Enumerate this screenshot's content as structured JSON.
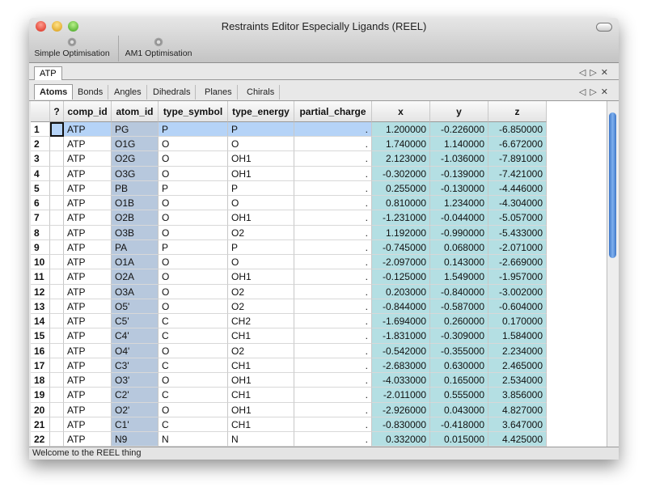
{
  "window": {
    "title": "Restraints Editor Especially Ligands (REEL)"
  },
  "toolbar": [
    "Simple Optimisation",
    "AM1 Optimisation"
  ],
  "document_tab": "ATP",
  "tabs": [
    "Atoms",
    "Bonds",
    "Angles",
    "Dihedrals",
    "Planes",
    "Chirals"
  ],
  "table": {
    "header": [
      "?",
      "comp_id",
      "atom_id",
      "type_symbol",
      "type_energy",
      "partial_charge",
      "x",
      "y",
      "z"
    ],
    "rows": [
      [
        "1",
        "ATP",
        "PG",
        "P",
        "P",
        ".",
        "1.200000",
        "-0.226000",
        "-6.850000"
      ],
      [
        "2",
        "ATP",
        "O1G",
        "O",
        "O",
        ".",
        "1.740000",
        "1.140000",
        "-6.672000"
      ],
      [
        "3",
        "ATP",
        "O2G",
        "O",
        "OH1",
        ".",
        "2.123000",
        "-1.036000",
        "-7.891000"
      ],
      [
        "4",
        "ATP",
        "O3G",
        "O",
        "OH1",
        ".",
        "-0.302000",
        "-0.139000",
        "-7.421000"
      ],
      [
        "5",
        "ATP",
        "PB",
        "P",
        "P",
        ".",
        "0.255000",
        "-0.130000",
        "-4.446000"
      ],
      [
        "6",
        "ATP",
        "O1B",
        "O",
        "O",
        ".",
        "0.810000",
        "1.234000",
        "-4.304000"
      ],
      [
        "7",
        "ATP",
        "O2B",
        "O",
        "OH1",
        ".",
        "-1.231000",
        "-0.044000",
        "-5.057000"
      ],
      [
        "8",
        "ATP",
        "O3B",
        "O",
        "O2",
        ".",
        "1.192000",
        "-0.990000",
        "-5.433000"
      ],
      [
        "9",
        "ATP",
        "PA",
        "P",
        "P",
        ".",
        "-0.745000",
        "0.068000",
        "-2.071000"
      ],
      [
        "10",
        "ATP",
        "O1A",
        "O",
        "O",
        ".",
        "-2.097000",
        "0.143000",
        "-2.669000"
      ],
      [
        "11",
        "ATP",
        "O2A",
        "O",
        "OH1",
        ".",
        "-0.125000",
        "1.549000",
        "-1.957000"
      ],
      [
        "12",
        "ATP",
        "O3A",
        "O",
        "O2",
        ".",
        "0.203000",
        "-0.840000",
        "-3.002000"
      ],
      [
        "13",
        "ATP",
        "O5'",
        "O",
        "O2",
        ".",
        "-0.844000",
        "-0.587000",
        "-0.604000"
      ],
      [
        "14",
        "ATP",
        "C5'",
        "C",
        "CH2",
        ".",
        "-1.694000",
        "0.260000",
        "0.170000"
      ],
      [
        "15",
        "ATP",
        "C4'",
        "C",
        "CH1",
        ".",
        "-1.831000",
        "-0.309000",
        "1.584000"
      ],
      [
        "16",
        "ATP",
        "O4'",
        "O",
        "O2",
        ".",
        "-0.542000",
        "-0.355000",
        "2.234000"
      ],
      [
        "17",
        "ATP",
        "C3'",
        "C",
        "CH1",
        ".",
        "-2.683000",
        "0.630000",
        "2.465000"
      ],
      [
        "18",
        "ATP",
        "O3'",
        "O",
        "OH1",
        ".",
        "-4.033000",
        "0.165000",
        "2.534000"
      ],
      [
        "19",
        "ATP",
        "C2'",
        "C",
        "CH1",
        ".",
        "-2.011000",
        "0.555000",
        "3.856000"
      ],
      [
        "20",
        "ATP",
        "O2'",
        "O",
        "OH1",
        ".",
        "-2.926000",
        "0.043000",
        "4.827000"
      ],
      [
        "21",
        "ATP",
        "C1'",
        "C",
        "CH1",
        ".",
        "-0.830000",
        "-0.418000",
        "3.647000"
      ],
      [
        "22",
        "ATP",
        "N9",
        "N",
        "N",
        ".",
        "0.332000",
        "0.015000",
        "4.425000"
      ]
    ]
  },
  "status": "Welcome to the REEL thing"
}
